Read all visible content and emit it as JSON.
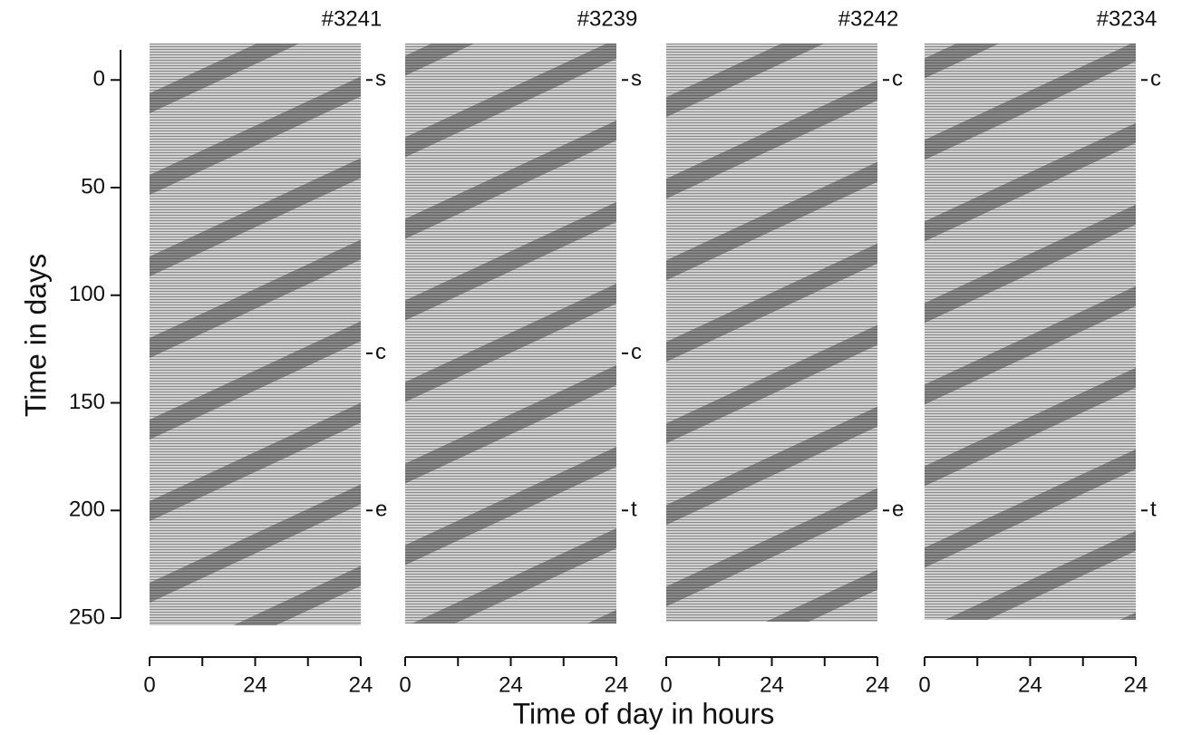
{
  "y_axis": {
    "label": "Time in days",
    "lim": [
      -14,
      250
    ],
    "ticks": [
      0,
      50,
      100,
      150,
      200,
      250
    ]
  },
  "x_axis": {
    "label": "Time of day in hours",
    "lim": [
      0,
      48
    ],
    "ticks": [
      0,
      24,
      {
        "value": 48,
        "label": "24"
      }
    ],
    "minor_ticks": [
      12,
      36
    ]
  },
  "panels": [
    {
      "title": "#3241",
      "markers": [
        {
          "label": "s",
          "day": 0
        },
        {
          "label": "c",
          "day": 127
        },
        {
          "label": "e",
          "day": 200
        }
      ]
    },
    {
      "title": "#3239",
      "markers": [
        {
          "label": "s",
          "day": 0
        },
        {
          "label": "c",
          "day": 127
        },
        {
          "label": "t",
          "day": 200
        }
      ]
    },
    {
      "title": "#3242",
      "markers": [
        {
          "label": "c",
          "day": 0
        },
        {
          "label": "e",
          "day": 200
        }
      ]
    },
    {
      "title": "#3234",
      "markers": [
        {
          "label": "c",
          "day": 0
        },
        {
          "label": "t",
          "day": 200
        }
      ]
    }
  ]
}
